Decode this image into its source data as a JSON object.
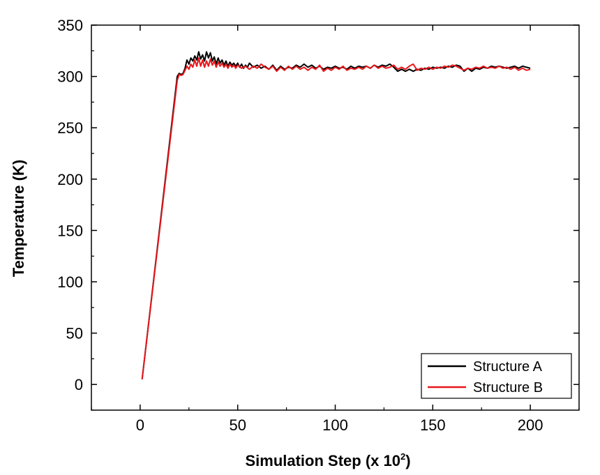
{
  "chart_data": {
    "type": "line",
    "xlabel": "Simulation Step (x 10",
    "xlabel_exponent": "2",
    "xlabel_close": ")",
    "ylabel": "Temperature (K)",
    "xlim": [
      -25,
      225
    ],
    "ylim": [
      -25,
      350
    ],
    "xticks": [
      0,
      50,
      100,
      150,
      200
    ],
    "yticks": [
      0,
      50,
      100,
      150,
      200,
      250,
      300,
      350
    ],
    "legend_position": "bottom-right",
    "grid": false,
    "series": [
      {
        "name": "Structure A",
        "color": "#000000",
        "points": [
          [
            1,
            5
          ],
          [
            19,
            300
          ],
          [
            20,
            303
          ],
          [
            21,
            302
          ],
          [
            22,
            303
          ],
          [
            23,
            308
          ],
          [
            24,
            316
          ],
          [
            25,
            312
          ],
          [
            26,
            318
          ],
          [
            27,
            315
          ],
          [
            28,
            320
          ],
          [
            29,
            316
          ],
          [
            30,
            324
          ],
          [
            31,
            317
          ],
          [
            32,
            321
          ],
          [
            33,
            315
          ],
          [
            34,
            324
          ],
          [
            35,
            318
          ],
          [
            36,
            323
          ],
          [
            37,
            315
          ],
          [
            38,
            319
          ],
          [
            39,
            312
          ],
          [
            40,
            318
          ],
          [
            41,
            313
          ],
          [
            42,
            316
          ],
          [
            43,
            311
          ],
          [
            44,
            315
          ],
          [
            45,
            310
          ],
          [
            46,
            314
          ],
          [
            47,
            311
          ],
          [
            48,
            313
          ],
          [
            49,
            310
          ],
          [
            50,
            313
          ],
          [
            51,
            309
          ],
          [
            52,
            312
          ],
          [
            53,
            308
          ],
          [
            54,
            311
          ],
          [
            55,
            309
          ],
          [
            56,
            313
          ],
          [
            58,
            309
          ],
          [
            60,
            311
          ],
          [
            62,
            308
          ],
          [
            64,
            310
          ],
          [
            66,
            307
          ],
          [
            68,
            311
          ],
          [
            70,
            306
          ],
          [
            72,
            310
          ],
          [
            74,
            307
          ],
          [
            76,
            309
          ],
          [
            78,
            308
          ],
          [
            80,
            311
          ],
          [
            82,
            309
          ],
          [
            84,
            312
          ],
          [
            86,
            309
          ],
          [
            88,
            311
          ],
          [
            90,
            308
          ],
          [
            92,
            310
          ],
          [
            94,
            307
          ],
          [
            96,
            309
          ],
          [
            98,
            308
          ],
          [
            100,
            310
          ],
          [
            102,
            308
          ],
          [
            104,
            309
          ],
          [
            106,
            307
          ],
          [
            108,
            310
          ],
          [
            110,
            308
          ],
          [
            112,
            310
          ],
          [
            114,
            309
          ],
          [
            116,
            310
          ],
          [
            118,
            308
          ],
          [
            120,
            311
          ],
          [
            122,
            309
          ],
          [
            124,
            311
          ],
          [
            126,
            310
          ],
          [
            128,
            312
          ],
          [
            130,
            309
          ],
          [
            132,
            305
          ],
          [
            134,
            307
          ],
          [
            136,
            305
          ],
          [
            138,
            307
          ],
          [
            140,
            305
          ],
          [
            142,
            307
          ],
          [
            144,
            306
          ],
          [
            146,
            308
          ],
          [
            148,
            307
          ],
          [
            150,
            309
          ],
          [
            152,
            308
          ],
          [
            154,
            309
          ],
          [
            156,
            308
          ],
          [
            158,
            310
          ],
          [
            160,
            309
          ],
          [
            162,
            311
          ],
          [
            164,
            310
          ],
          [
            166,
            305
          ],
          [
            168,
            308
          ],
          [
            170,
            305
          ],
          [
            172,
            308
          ],
          [
            174,
            307
          ],
          [
            176,
            309
          ],
          [
            178,
            308
          ],
          [
            180,
            310
          ],
          [
            182,
            309
          ],
          [
            184,
            310
          ],
          [
            186,
            309
          ],
          [
            188,
            308
          ],
          [
            190,
            309
          ],
          [
            192,
            310
          ],
          [
            194,
            308
          ],
          [
            196,
            310
          ],
          [
            198,
            309
          ],
          [
            200,
            308
          ]
        ]
      },
      {
        "name": "Structure B",
        "color": "#e8161b",
        "points": [
          [
            1,
            5
          ],
          [
            19,
            296
          ],
          [
            20,
            302
          ],
          [
            21,
            301
          ],
          [
            22,
            302
          ],
          [
            23,
            306
          ],
          [
            24,
            310
          ],
          [
            25,
            307
          ],
          [
            26,
            312
          ],
          [
            27,
            309
          ],
          [
            28,
            316
          ],
          [
            29,
            310
          ],
          [
            30,
            318
          ],
          [
            31,
            310
          ],
          [
            32,
            316
          ],
          [
            33,
            309
          ],
          [
            34,
            315
          ],
          [
            35,
            310
          ],
          [
            36,
            317
          ],
          [
            37,
            311
          ],
          [
            38,
            315
          ],
          [
            39,
            309
          ],
          [
            40,
            314
          ],
          [
            41,
            310
          ],
          [
            42,
            313
          ],
          [
            43,
            309
          ],
          [
            44,
            312
          ],
          [
            45,
            308
          ],
          [
            46,
            312
          ],
          [
            47,
            309
          ],
          [
            48,
            311
          ],
          [
            49,
            308
          ],
          [
            50,
            311
          ],
          [
            52,
            308
          ],
          [
            54,
            310
          ],
          [
            56,
            307
          ],
          [
            58,
            310
          ],
          [
            60,
            308
          ],
          [
            62,
            312
          ],
          [
            64,
            309
          ],
          [
            66,
            307
          ],
          [
            68,
            310
          ],
          [
            70,
            305
          ],
          [
            72,
            309
          ],
          [
            74,
            306
          ],
          [
            76,
            310
          ],
          [
            78,
            307
          ],
          [
            80,
            310
          ],
          [
            82,
            307
          ],
          [
            84,
            309
          ],
          [
            86,
            306
          ],
          [
            88,
            309
          ],
          [
            90,
            307
          ],
          [
            92,
            311
          ],
          [
            94,
            305
          ],
          [
            96,
            308
          ],
          [
            98,
            306
          ],
          [
            100,
            309
          ],
          [
            102,
            307
          ],
          [
            104,
            310
          ],
          [
            106,
            306
          ],
          [
            108,
            308
          ],
          [
            110,
            307
          ],
          [
            112,
            309
          ],
          [
            114,
            307
          ],
          [
            116,
            310
          ],
          [
            118,
            308
          ],
          [
            120,
            311
          ],
          [
            122,
            308
          ],
          [
            124,
            310
          ],
          [
            126,
            308
          ],
          [
            128,
            309
          ],
          [
            130,
            311
          ],
          [
            132,
            307
          ],
          [
            134,
            309
          ],
          [
            136,
            307
          ],
          [
            138,
            310
          ],
          [
            140,
            312
          ],
          [
            142,
            306
          ],
          [
            144,
            308
          ],
          [
            146,
            307
          ],
          [
            148,
            309
          ],
          [
            150,
            307
          ],
          [
            152,
            309
          ],
          [
            154,
            308
          ],
          [
            156,
            310
          ],
          [
            158,
            309
          ],
          [
            160,
            311
          ],
          [
            162,
            310
          ],
          [
            164,
            308
          ],
          [
            166,
            306
          ],
          [
            168,
            308
          ],
          [
            170,
            307
          ],
          [
            172,
            309
          ],
          [
            174,
            308
          ],
          [
            176,
            310
          ],
          [
            178,
            308
          ],
          [
            180,
            309
          ],
          [
            182,
            308
          ],
          [
            184,
            310
          ],
          [
            186,
            308
          ],
          [
            188,
            309
          ],
          [
            190,
            307
          ],
          [
            192,
            309
          ],
          [
            194,
            306
          ],
          [
            196,
            308
          ],
          [
            198,
            306
          ],
          [
            200,
            307
          ]
        ]
      }
    ]
  }
}
